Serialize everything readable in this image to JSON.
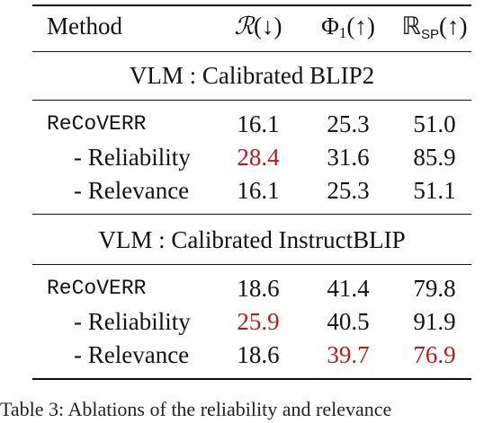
{
  "table": {
    "header": {
      "method": "Method",
      "col1": {
        "symbol": "ℛ",
        "arrow": "(↓)"
      },
      "col2": {
        "symbol": "Φ",
        "sub": "1",
        "arrow": "(↑)"
      },
      "col3": {
        "symbol": "ℝ",
        "sub": "SP",
        "arrow": "(↑)"
      }
    },
    "sections": [
      {
        "title": "VLM : Calibrated BLIP2",
        "rows": [
          {
            "name": "ReCoVERR",
            "v1": "16.1",
            "v2": "25.3",
            "v3": "51.0"
          },
          {
            "name": "- Reliability",
            "v1": "28.4",
            "v2": "31.6",
            "v3": "85.9"
          },
          {
            "name": "- Relevance",
            "v1": "16.1",
            "v2": "25.3",
            "v3": "51.1"
          }
        ]
      },
      {
        "title": "VLM : Calibrated InstructBLIP",
        "rows": [
          {
            "name": "ReCoVERR",
            "v1": "18.6",
            "v2": "41.4",
            "v3": "79.8"
          },
          {
            "name": "- Reliability",
            "v1": "25.9",
            "v2": "40.5",
            "v3": "91.9"
          },
          {
            "name": "- Relevance",
            "v1": "18.6",
            "v2": "39.7",
            "v3": "76.9"
          }
        ]
      }
    ],
    "highlight_color": "#b51d1d"
  },
  "caption": "Table 3: Ablations of the reliability and relevance"
}
